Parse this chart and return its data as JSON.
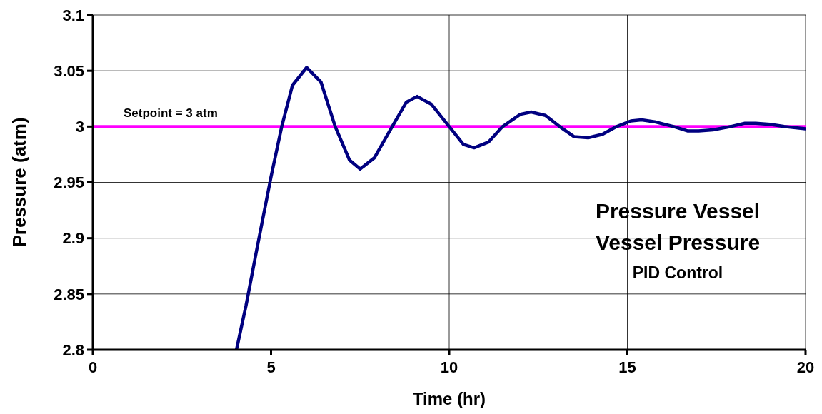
{
  "chart_data": {
    "type": "line",
    "title": "Pressure Vessel",
    "subtitle": "Vessel Pressure",
    "annotations": [
      {
        "text": "PID Control"
      }
    ],
    "xlabel": "Time (hr)",
    "ylabel": "Pressure (atm)",
    "xlim": [
      0,
      20
    ],
    "xticks": [
      0,
      5,
      10,
      15,
      20
    ],
    "ylim": [
      2.8,
      3.1
    ],
    "yticks": [
      2.8,
      2.85,
      2.9,
      2.95,
      3,
      3.05,
      3.1
    ],
    "grid": true,
    "ref_lines": [
      {
        "axis": "y",
        "value": 3,
        "label": "Setpoint = 3 atm",
        "color": "#ff00ff"
      }
    ],
    "series": [
      {
        "color": "#000080",
        "x": [
          4.03,
          4.3,
          4.6,
          5.0,
          5.3,
          5.6,
          6.0,
          6.4,
          6.8,
          7.2,
          7.5,
          7.9,
          8.4,
          8.8,
          9.1,
          9.5,
          10.0,
          10.4,
          10.7,
          11.1,
          11.5,
          12.0,
          12.3,
          12.7,
          13.1,
          13.5,
          13.9,
          14.3,
          14.7,
          15.1,
          15.4,
          15.8,
          16.3,
          16.7,
          17.0,
          17.4,
          17.9,
          18.3,
          18.6,
          19.0,
          19.4,
          20
        ],
        "values": [
          2.8,
          2.84,
          2.89,
          2.955,
          3.0,
          3.037,
          3.053,
          3.04,
          3.0,
          2.97,
          2.962,
          2.972,
          3.0,
          3.022,
          3.027,
          3.02,
          3.0,
          2.984,
          2.981,
          2.986,
          3.0,
          3.011,
          3.013,
          3.01,
          3.0,
          2.991,
          2.99,
          2.993,
          3.0,
          3.005,
          3.006,
          3.004,
          3.0,
          2.996,
          2.996,
          2.997,
          3.0,
          3.003,
          3.003,
          3.002,
          3.0,
          2.998
        ]
      }
    ]
  }
}
